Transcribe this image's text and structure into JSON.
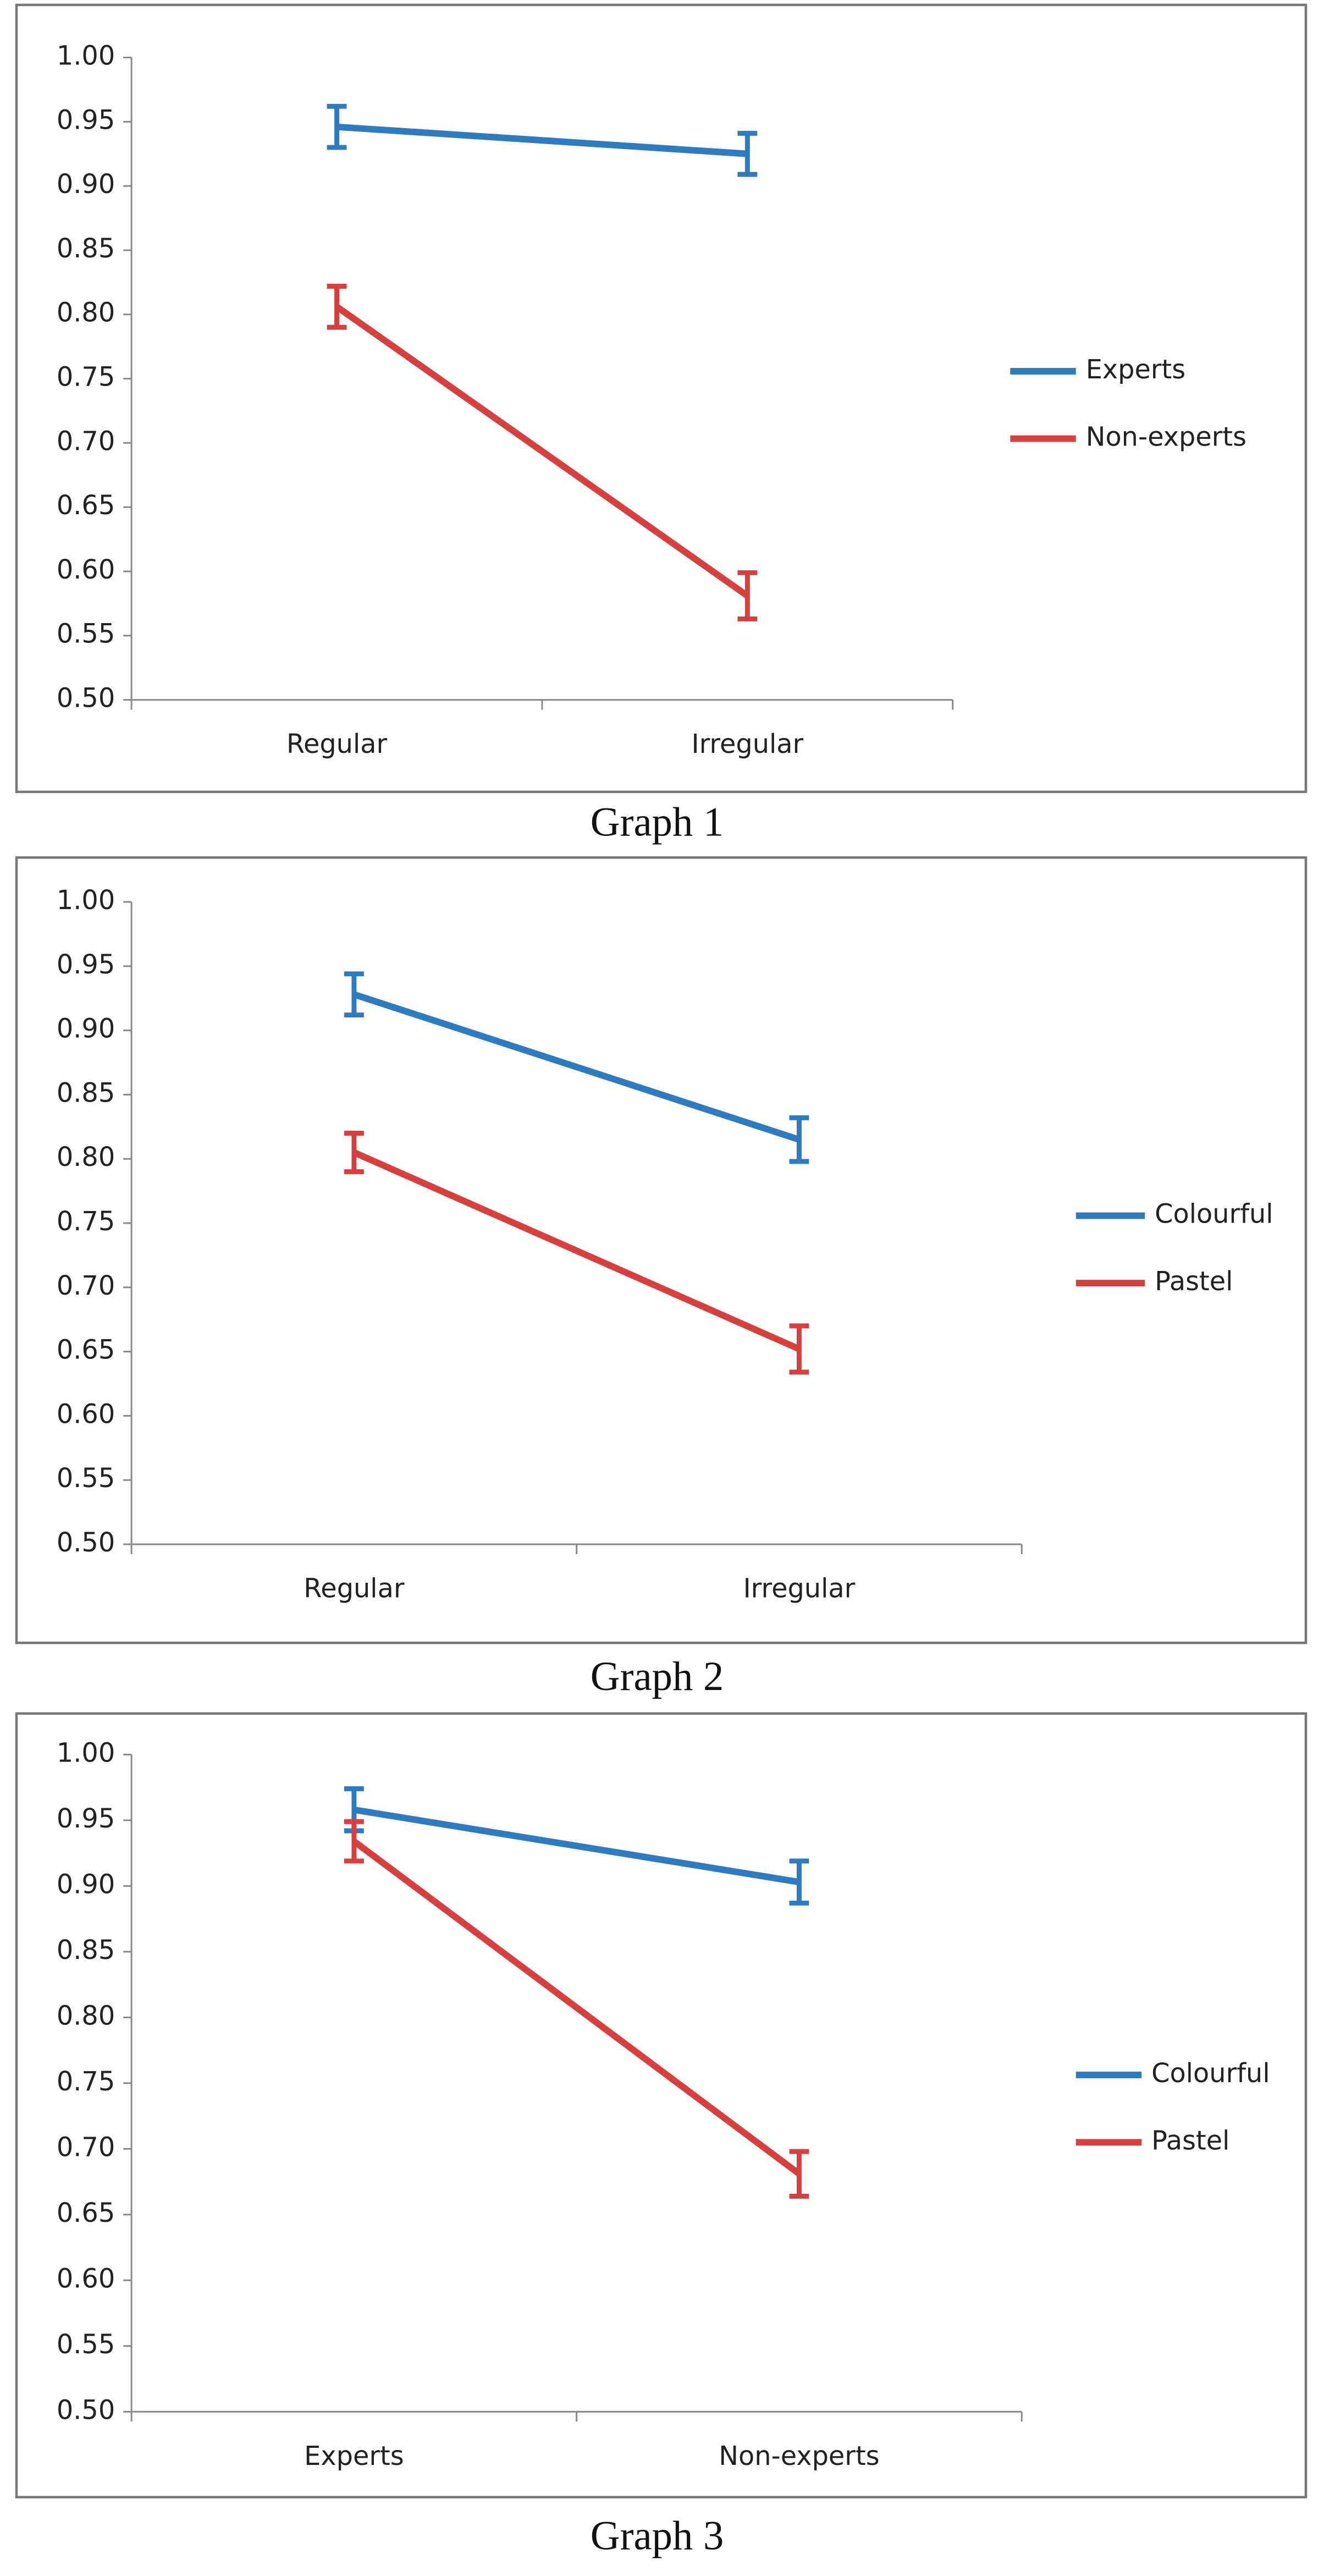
{
  "chart_data": [
    {
      "type": "line",
      "caption": "Graph 1",
      "categories": [
        "Regular",
        "Irregular"
      ],
      "series": [
        {
          "name": "Experts",
          "color": "#2e7bc0",
          "values": [
            0.946,
            0.925
          ],
          "errors": [
            0.016,
            0.016
          ]
        },
        {
          "name": "Non-experts",
          "color": "#d6403f",
          "values": [
            0.806,
            0.581
          ],
          "errors": [
            0.016,
            0.018
          ]
        }
      ],
      "ylim": [
        0.5,
        1.0
      ],
      "yticks": [
        {
          "value": 0.5,
          "label": "0.50"
        },
        0.55,
        {
          "value": 0.6,
          "label": "0.60"
        },
        0.65,
        {
          "value": 0.7,
          "label": "0.70"
        },
        0.75,
        {
          "value": 0.8,
          "label": "0.80"
        },
        0.85,
        {
          "value": 0.9,
          "label": "0.90"
        },
        0.95,
        {
          "value": 1.0,
          "label": "1.00"
        }
      ],
      "grid": false,
      "legend": "right"
    },
    {
      "type": "line",
      "caption": "Graph 2",
      "categories": [
        "Regular",
        "Irregular"
      ],
      "series": [
        {
          "name": "Colourful",
          "color": "#2e7bc0",
          "values": [
            0.928,
            0.815
          ],
          "errors": [
            0.016,
            0.017
          ]
        },
        {
          "name": "Pastel",
          "color": "#d6403f",
          "values": [
            0.805,
            0.652
          ],
          "errors": [
            0.015,
            0.018
          ]
        }
      ],
      "ylim": [
        0.5,
        1.0
      ],
      "yticks": [
        {
          "value": 0.5,
          "label": "0.50"
        },
        0.55,
        {
          "value": 0.6,
          "label": "0.60"
        },
        0.65,
        {
          "value": 0.7,
          "label": "0.70"
        },
        0.75,
        {
          "value": 0.8,
          "label": "0.80"
        },
        0.85,
        {
          "value": 0.9,
          "label": "0.90"
        },
        0.95,
        {
          "value": 1.0,
          "label": "1.00"
        }
      ],
      "grid": false,
      "legend": "right"
    },
    {
      "type": "line",
      "caption": "Graph 3",
      "categories": [
        "Experts",
        "Non-experts"
      ],
      "series": [
        {
          "name": "Colourful",
          "color": "#2e7bc0",
          "values": [
            0.958,
            0.903
          ],
          "errors": [
            0.016,
            0.016
          ]
        },
        {
          "name": "Pastel",
          "color": "#d6403f",
          "values": [
            0.934,
            0.681
          ],
          "errors": [
            0.015,
            0.017
          ]
        }
      ],
      "ylim": [
        0.5,
        1.0
      ],
      "yticks": [
        {
          "value": 0.5,
          "label": "0.50"
        },
        0.55,
        {
          "value": 0.6,
          "label": "0.60"
        },
        0.65,
        {
          "value": 0.7,
          "label": "0.70"
        },
        0.75,
        {
          "value": 0.8,
          "label": "0.80"
        },
        0.85,
        {
          "value": 0.9,
          "label": "0.90"
        },
        0.95,
        {
          "value": 1.0,
          "label": "1.00"
        }
      ],
      "grid": false,
      "legend": "right"
    }
  ]
}
